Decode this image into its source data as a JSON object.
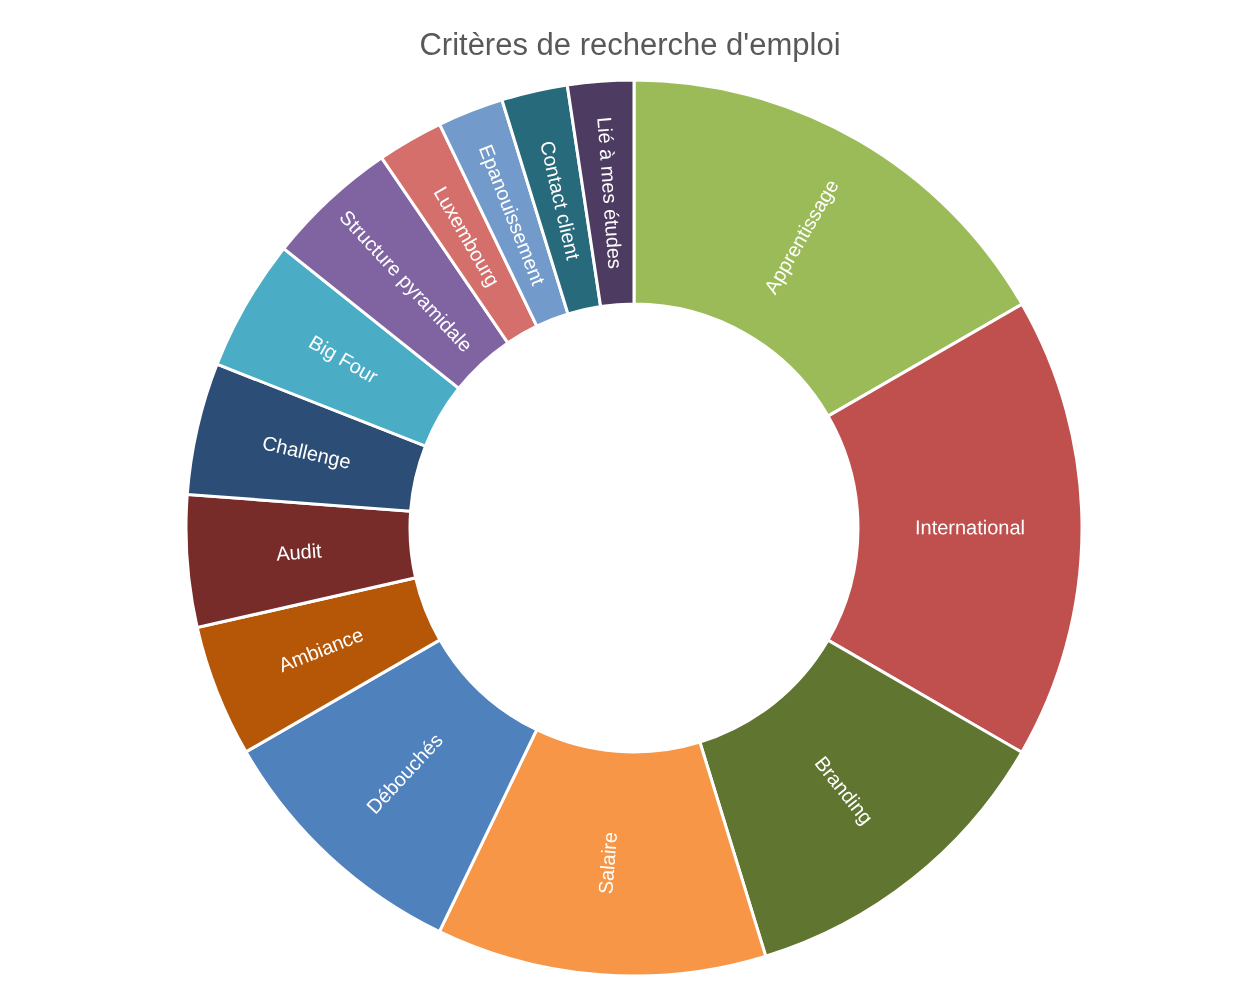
{
  "chart_data": {
    "type": "donut",
    "title": "Critères de recherche d'emploi",
    "categories": [
      "Apprentissage",
      "International",
      "Branding",
      "Salaire",
      "Débouchés",
      "Ambiance",
      "Audit",
      "Challenge",
      "Big Four",
      "Structure pyramidale",
      "Luxembourg",
      "Epanouissement",
      "Contact client",
      "Lié à mes études"
    ],
    "values": [
      16.67,
      16.67,
      11.9,
      11.9,
      9.52,
      4.76,
      4.76,
      4.76,
      4.76,
      4.76,
      2.38,
      2.38,
      2.38,
      2.38
    ],
    "colors": [
      "#9bbb59",
      "#c0504d",
      "#5f7530",
      "#f79646",
      "#4f81bd",
      "#b65708",
      "#772c2a",
      "#2c4d75",
      "#4bacc6",
      "#8064a2",
      "#d46f6c",
      "#729aca",
      "#276a7c",
      "#4d3b62"
    ]
  }
}
